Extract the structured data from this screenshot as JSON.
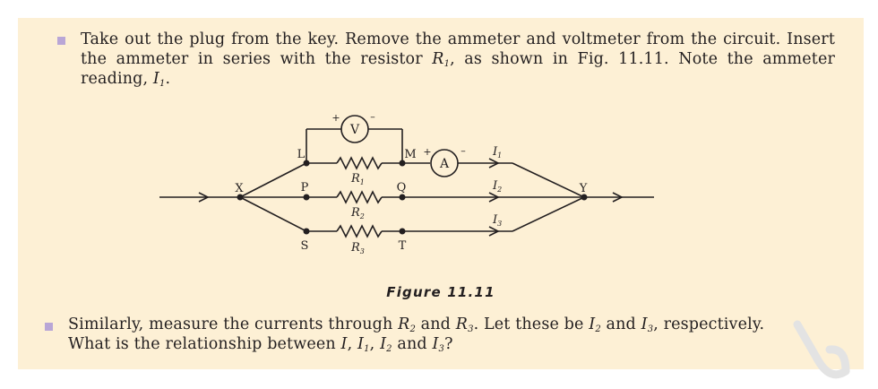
{
  "instructions": [
    {
      "part1": "Take out the plug from the key. Remove the ammeter and voltmeter from the circuit. Insert the ammeter in series with the resistor ",
      "var": "R",
      "sub": "1",
      "part2": ", as shown in Fig. 11.11. Note the ammeter reading, ",
      "var2": "I",
      "sub2": "1",
      "part3": "."
    },
    {
      "part1": "Similarly, measure the currents through ",
      "r2": "R",
      "r2sub": "2",
      "and1": " and ",
      "r3": "R",
      "r3sub": "3",
      "part2": ". Let these be ",
      "i2": "I",
      "i2sub": "2",
      "and2": " and ",
      "i3": "I",
      "i3sub": "3",
      "part3": ", respectively.",
      "line2a": "What is the relationship between ",
      "I": "I",
      "comma1": ", ",
      "ia": "I",
      "iasub": "1",
      "comma2": ", ",
      "ib": "I",
      "ibsub": "2",
      "and3": " and ",
      "ic": "I",
      "icsub": "3",
      "end": "?"
    }
  ],
  "figure": {
    "caption": "Figure 11.11",
    "nodes": {
      "X": "X",
      "Y": "Y",
      "L": "L",
      "M": "M",
      "P": "P",
      "Q": "Q",
      "S": "S",
      "T": "T"
    },
    "meters": {
      "voltmeter": "V",
      "ammeter": "A"
    },
    "polarity": {
      "plus": "+",
      "minus": "–"
    },
    "resistors": [
      {
        "label": "R",
        "sub": "1"
      },
      {
        "label": "R",
        "sub": "2"
      },
      {
        "label": "R",
        "sub": "3"
      }
    ],
    "currents": [
      {
        "label": "I",
        "sub": "1"
      },
      {
        "label": "I",
        "sub": "2"
      },
      {
        "label": "I",
        "sub": "3"
      }
    ]
  },
  "colors": {
    "panel": "#fdf0d5",
    "bullet": "#b9a6d6",
    "ink": "#231f20",
    "watermark": "#e3e3e3"
  }
}
